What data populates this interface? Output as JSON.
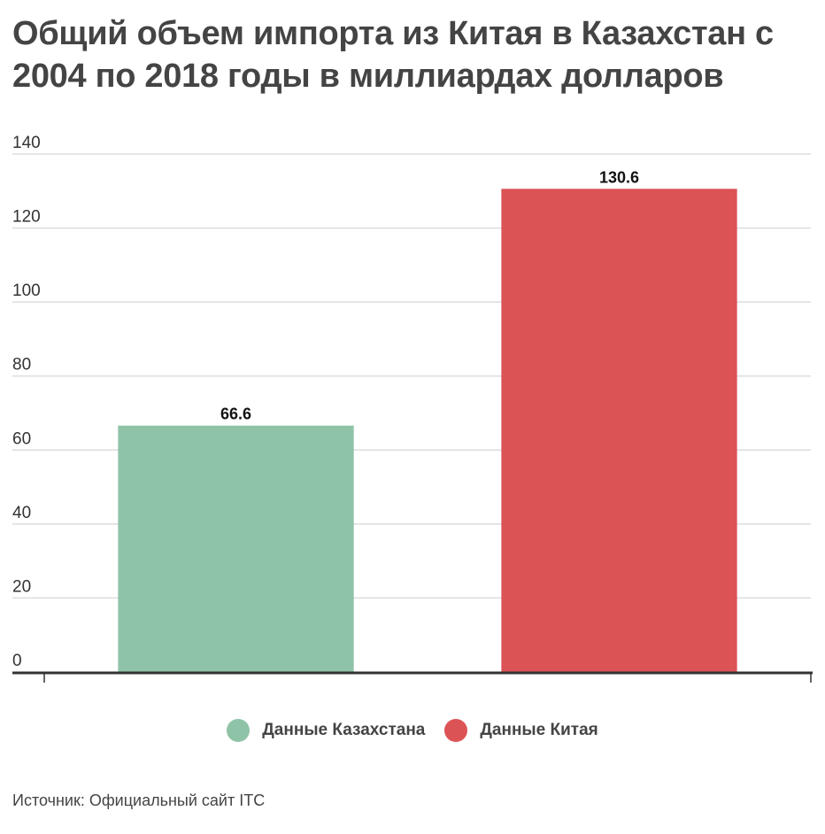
{
  "chart_data": {
    "type": "bar",
    "title": "Общий объем импорта из Китая в Казахстан с 2004 по 2018 годы в миллиардах долларов",
    "categories": [
      "Данные Казахстана",
      "Данные Китая"
    ],
    "series": [
      {
        "values": [
          66.6,
          130.6
        ]
      }
    ],
    "value_labels": [
      "66.6",
      "130.6"
    ],
    "bar_colors": [
      "#8fc3a7",
      "#dc5356"
    ],
    "ylim": [
      0,
      140
    ],
    "yticks": [
      "0",
      "20",
      "40",
      "60",
      "80",
      "100",
      "120",
      "140"
    ],
    "grid": true,
    "legend_position": "bottom",
    "legend": [
      {
        "label": "Данные Казахстана",
        "color": "#8fc3a7"
      },
      {
        "label": "Данные Китая",
        "color": "#dc5356"
      }
    ],
    "source": "Источник: Официальный сайт ITC"
  }
}
